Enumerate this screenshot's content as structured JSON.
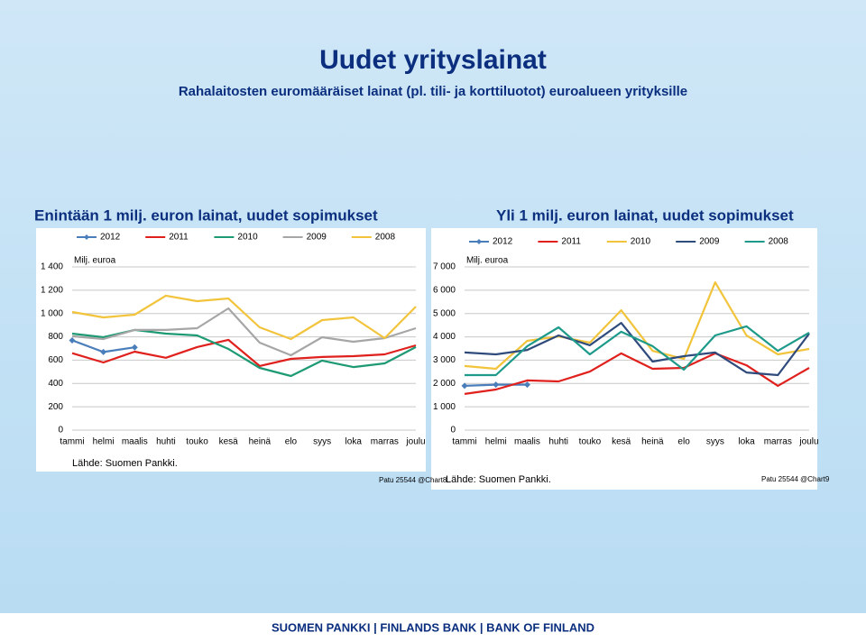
{
  "title": "Uudet yrityslainat",
  "subtitle": "Rahalaitosten euromääräiset lainat (pl. tili- ja korttiluotot) euroalueen yrityksille",
  "footer": "SUOMEN PANKKI | FINLANDS BANK | BANK OF FINLAND",
  "chart_data": [
    {
      "type": "line",
      "title": "Enintään 1 milj. euron lainat, uudet sopimukset",
      "y_label": "Milj. euroa",
      "source": "Lähde: Suomen Pankki.",
      "note": "Patu 25544 @Chart8",
      "categories": [
        "tammi",
        "helmi",
        "maalis",
        "huhti",
        "touko",
        "kesä",
        "heinä",
        "elo",
        "syys",
        "loka",
        "marras",
        "joulu"
      ],
      "series": [
        {
          "name": "2012",
          "color": "#4a7ebb",
          "marker": "diamond",
          "values": [
            770,
            670,
            710,
            null,
            null,
            null,
            null,
            null,
            null,
            null,
            null,
            null
          ]
        },
        {
          "name": "2011",
          "color": "#e0201c",
          "values": [
            660,
            580,
            673,
            620,
            712,
            774,
            550,
            611,
            627,
            634,
            650,
            727
          ]
        },
        {
          "name": "2010",
          "color": "#1d9a74",
          "values": [
            828,
            797,
            859,
            828,
            812,
            696,
            534,
            464,
            596,
            541,
            572,
            712
          ]
        },
        {
          "name": "2009",
          "color": "#a6a6a6",
          "values": [
            805,
            781,
            859,
            859,
            874,
            1044,
            750,
            642,
            797,
            758,
            789,
            874
          ]
        },
        {
          "name": "2008",
          "color": "#f2c43c",
          "values": [
            1013,
            967,
            990,
            1153,
            1106,
            1129,
            882,
            781,
            944,
            967,
            789,
            1060
          ]
        }
      ],
      "ylim": [
        0,
        1400
      ],
      "yticks": [
        0,
        200,
        400,
        600,
        800,
        {
          "value": 1000,
          "label": "1 000"
        },
        {
          "value": 1200,
          "label": "1 200"
        },
        {
          "value": 1400,
          "label": "1 400"
        }
      ],
      "grid": true,
      "legend": "top"
    },
    {
      "type": "line",
      "title": "Yli 1 milj. euron lainat, uudet sopimukset",
      "y_label": "Milj. euroa",
      "source": "Lähde: Suomen Pankki.",
      "note": "Patu 25544 @Chart9",
      "categories": [
        "tammi",
        "helmi",
        "maalis",
        "huhti",
        "touko",
        "kesä",
        "heinä",
        "elo",
        "syys",
        "loka",
        "marras",
        "joulu"
      ],
      "series": [
        {
          "name": "2012",
          "color": "#4a7ebb",
          "marker": "diamond",
          "values": [
            1900,
            1950,
            1950,
            null,
            null,
            null,
            null,
            null,
            null,
            null,
            null,
            null
          ]
        },
        {
          "name": "2011",
          "color": "#e0201c",
          "values": [
            1550,
            1740,
            2130,
            2090,
            2510,
            3290,
            2630,
            2670,
            3290,
            2780,
            1900,
            2670
          ]
        },
        {
          "name": "2010",
          "color": "#f2c43c",
          "values": [
            2750,
            2630,
            3830,
            4020,
            3750,
            5140,
            3400,
            3050,
            6340,
            4060,
            3250,
            3480
          ]
        },
        {
          "name": "2009",
          "color": "#2f4b7c",
          "values": [
            3330,
            3250,
            3440,
            4060,
            3640,
            4600,
            2940,
            3170,
            3330,
            2470,
            2360,
            4140
          ]
        },
        {
          "name": "2008",
          "color": "#1d9a8a",
          "values": [
            2360,
            2360,
            3600,
            4410,
            3250,
            4220,
            3600,
            2590,
            4060,
            4450,
            3400,
            4180
          ]
        }
      ],
      "ylim": [
        0,
        7000
      ],
      "yticks": [
        0,
        {
          "value": 1000,
          "label": "1 000"
        },
        {
          "value": 2000,
          "label": "2 000"
        },
        {
          "value": 3000,
          "label": "3 000"
        },
        {
          "value": 4000,
          "label": "4 000"
        },
        {
          "value": 5000,
          "label": "5 000"
        },
        {
          "value": 6000,
          "label": "6 000"
        },
        {
          "value": 7000,
          "label": "7 000"
        }
      ],
      "grid": true,
      "legend": "top"
    }
  ]
}
